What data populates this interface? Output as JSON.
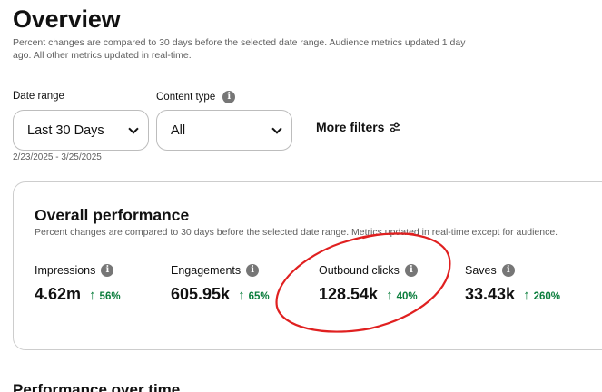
{
  "header": {
    "title": "Overview",
    "subtitle": "Percent changes are compared to 30 days before the selected date range. Audience metrics updated 1 day ago. All other metrics updated in real-time."
  },
  "filters": {
    "date_range_label": "Date range",
    "date_range_value": "Last 30 Days",
    "date_range_text": "2/23/2025 - 3/25/2025",
    "content_type_label": "Content type",
    "content_type_value": "All",
    "more_filters_label": "More filters"
  },
  "performance": {
    "title": "Overall performance",
    "subtitle": "Percent changes are compared to 30 days before the selected date range. Metrics updated in real-time except for audience.",
    "metrics": [
      {
        "label": "Impressions",
        "value": "4.62m",
        "change": "56%"
      },
      {
        "label": "Engagements",
        "value": "605.95k",
        "change": "65%"
      },
      {
        "label": "Outbound clicks",
        "value": "128.54k",
        "change": "40%"
      },
      {
        "label": "Saves",
        "value": "33.43k",
        "change": "260%"
      }
    ]
  },
  "next_section": {
    "title": "Performance over time"
  },
  "colors": {
    "positive": "#0a7d3c",
    "annotation": "#e02020",
    "info_icon": "#767676"
  },
  "icons": {
    "info": "info-icon",
    "chevron": "chevron-down-icon",
    "arrow": "arrow-up-icon",
    "filters": "sliders-icon"
  }
}
